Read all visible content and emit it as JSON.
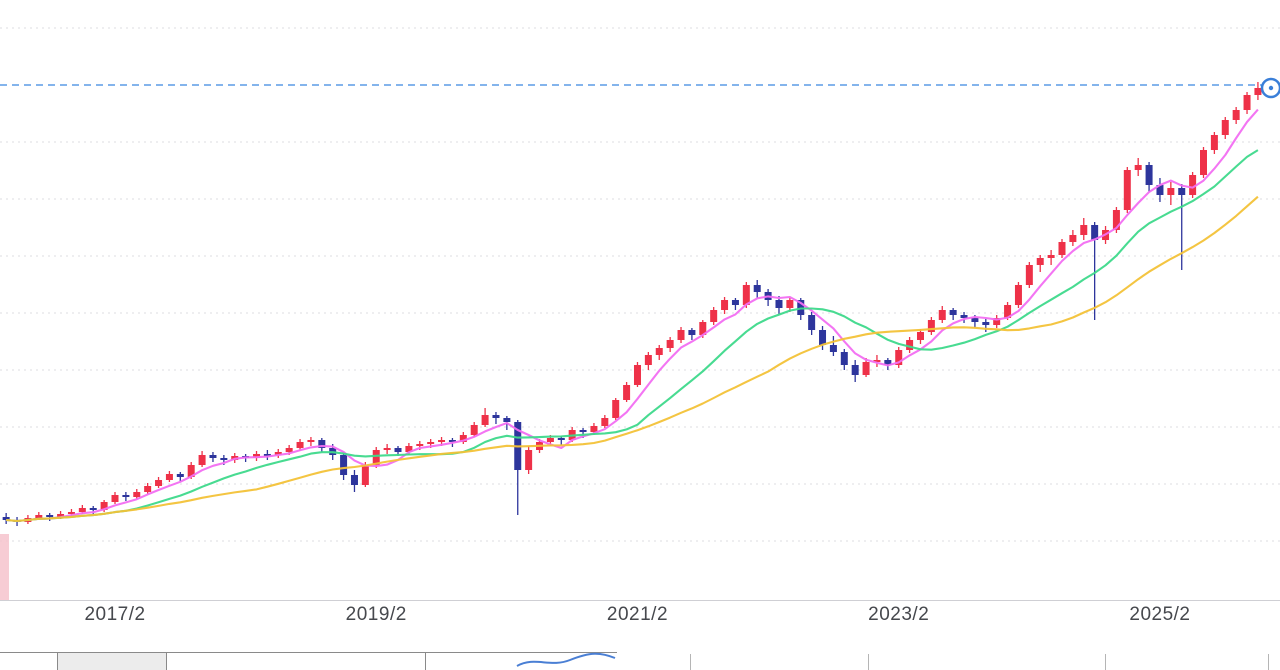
{
  "window": {
    "background": "#ffffff"
  },
  "chart_data": {
    "type": "candlestick",
    "title": "",
    "frequency": "monthly",
    "x_start": "2016/4",
    "x_tick_labels": [
      {
        "label": "2017/2",
        "month_index": 10
      },
      {
        "label": "2019/2",
        "month_index": 34
      },
      {
        "label": "2021/2",
        "month_index": 58
      },
      {
        "label": "2023/2",
        "month_index": 82
      },
      {
        "label": "2025/2",
        "month_index": 106
      }
    ],
    "y_axis_visible": false,
    "ylim": [
      0,
      670
    ],
    "grid": true,
    "legend_position": "none",
    "up_color": "#ee3148",
    "down_color": "#2d359c",
    "resistance_line": {
      "value": 585,
      "style": "dashed",
      "color": "#5c9ce6"
    },
    "moving_averages": [
      {
        "name": "short-term-ma",
        "period": 5,
        "color": "#f26ef2"
      },
      {
        "name": "mid-term-ma",
        "period": 12,
        "color": "#3ed98b"
      },
      {
        "name": "long-term-ma",
        "period": 24,
        "color": "#f3c238"
      }
    ],
    "candles": [
      [
        153,
        157,
        146,
        150
      ],
      [
        150,
        153,
        144,
        148
      ],
      [
        148,
        155,
        146,
        152
      ],
      [
        152,
        158,
        150,
        155
      ],
      [
        155,
        157,
        149,
        153
      ],
      [
        153,
        159,
        151,
        156
      ],
      [
        156,
        161,
        153,
        158
      ],
      [
        158,
        165,
        156,
        162
      ],
      [
        162,
        164,
        156,
        160
      ],
      [
        160,
        170,
        158,
        168
      ],
      [
        168,
        178,
        166,
        175
      ],
      [
        175,
        178,
        169,
        173
      ],
      [
        173,
        181,
        171,
        178
      ],
      [
        178,
        187,
        176,
        184
      ],
      [
        184,
        193,
        182,
        190
      ],
      [
        190,
        199,
        188,
        196
      ],
      [
        196,
        198,
        189,
        193
      ],
      [
        193,
        208,
        191,
        205
      ],
      [
        205,
        219,
        203,
        215
      ],
      [
        215,
        218,
        208,
        212
      ],
      [
        212,
        215,
        205,
        210
      ],
      [
        210,
        217,
        207,
        214
      ],
      [
        214,
        216,
        208,
        212
      ],
      [
        212,
        219,
        209,
        216
      ],
      [
        216,
        220,
        210,
        215
      ],
      [
        215,
        221,
        212,
        218
      ],
      [
        218,
        225,
        215,
        222
      ],
      [
        222,
        231,
        219,
        228
      ],
      [
        228,
        233,
        224,
        230
      ],
      [
        230,
        232,
        218,
        222
      ],
      [
        222,
        226,
        210,
        215
      ],
      [
        215,
        217,
        190,
        195
      ],
      [
        195,
        200,
        178,
        185
      ],
      [
        185,
        208,
        183,
        205
      ],
      [
        205,
        223,
        202,
        220
      ],
      [
        220,
        226,
        216,
        222
      ],
      [
        222,
        224,
        214,
        218
      ],
      [
        218,
        227,
        215,
        224
      ],
      [
        224,
        229,
        220,
        226
      ],
      [
        226,
        231,
        222,
        228
      ],
      [
        228,
        233,
        224,
        230
      ],
      [
        230,
        232,
        223,
        228
      ],
      [
        228,
        238,
        226,
        235
      ],
      [
        235,
        248,
        233,
        245
      ],
      [
        245,
        262,
        243,
        255
      ],
      [
        255,
        258,
        246,
        252
      ],
      [
        252,
        254,
        240,
        248
      ],
      [
        248,
        250,
        155,
        200
      ],
      [
        200,
        224,
        196,
        220
      ],
      [
        220,
        231,
        217,
        228
      ],
      [
        228,
        235,
        224,
        232
      ],
      [
        232,
        234,
        225,
        230
      ],
      [
        230,
        243,
        228,
        240
      ],
      [
        240,
        242,
        232,
        238
      ],
      [
        238,
        247,
        235,
        244
      ],
      [
        244,
        255,
        242,
        252
      ],
      [
        252,
        272,
        250,
        270
      ],
      [
        270,
        288,
        268,
        285
      ],
      [
        285,
        308,
        283,
        305
      ],
      [
        305,
        318,
        300,
        315
      ],
      [
        315,
        325,
        310,
        322
      ],
      [
        322,
        333,
        318,
        330
      ],
      [
        330,
        343,
        327,
        340
      ],
      [
        340,
        342,
        330,
        335
      ],
      [
        335,
        350,
        332,
        348
      ],
      [
        348,
        363,
        345,
        360
      ],
      [
        360,
        373,
        356,
        370
      ],
      [
        370,
        372,
        360,
        365
      ],
      [
        365,
        388,
        362,
        385
      ],
      [
        385,
        390,
        372,
        378
      ],
      [
        378,
        381,
        364,
        370
      ],
      [
        370,
        374,
        356,
        362
      ],
      [
        362,
        372,
        358,
        370
      ],
      [
        370,
        372,
        350,
        355
      ],
      [
        355,
        358,
        335,
        340
      ],
      [
        340,
        344,
        320,
        325
      ],
      [
        325,
        334,
        314,
        318
      ],
      [
        318,
        321,
        300,
        305
      ],
      [
        305,
        310,
        288,
        295
      ],
      [
        295,
        312,
        293,
        308
      ],
      [
        308,
        315,
        303,
        310
      ],
      [
        310,
        312,
        300,
        305
      ],
      [
        305,
        323,
        302,
        320
      ],
      [
        320,
        333,
        317,
        330
      ],
      [
        330,
        341,
        326,
        338
      ],
      [
        338,
        353,
        335,
        350
      ],
      [
        350,
        364,
        347,
        360
      ],
      [
        360,
        362,
        350,
        355
      ],
      [
        355,
        358,
        347,
        352
      ],
      [
        352,
        355,
        342,
        348
      ],
      [
        348,
        351,
        338,
        345
      ],
      [
        345,
        355,
        342,
        352
      ],
      [
        352,
        368,
        350,
        365
      ],
      [
        365,
        388,
        362,
        385
      ],
      [
        385,
        408,
        382,
        405
      ],
      [
        405,
        415,
        398,
        412
      ],
      [
        412,
        420,
        405,
        415
      ],
      [
        415,
        431,
        412,
        428
      ],
      [
        428,
        440,
        424,
        435
      ],
      [
        435,
        452,
        430,
        445
      ],
      [
        445,
        448,
        350,
        430
      ],
      [
        430,
        444,
        426,
        440
      ],
      [
        440,
        463,
        437,
        460
      ],
      [
        460,
        503,
        457,
        500
      ],
      [
        500,
        512,
        494,
        505
      ],
      [
        505,
        508,
        478,
        485
      ],
      [
        485,
        492,
        468,
        475
      ],
      [
        475,
        488,
        465,
        482
      ],
      [
        482,
        486,
        400,
        475
      ],
      [
        475,
        498,
        472,
        495
      ],
      [
        495,
        523,
        492,
        520
      ],
      [
        520,
        538,
        516,
        535
      ],
      [
        535,
        553,
        531,
        550
      ],
      [
        550,
        563,
        546,
        560
      ],
      [
        560,
        578,
        556,
        575
      ],
      [
        575,
        588,
        570,
        582
      ]
    ]
  }
}
